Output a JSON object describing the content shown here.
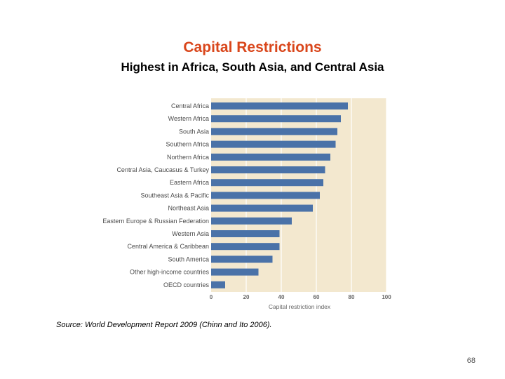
{
  "slide": {
    "title": "Capital Restrictions",
    "subtitle": "Highest in Africa, South Asia, and Central Asia",
    "source": "Source: World Development Report 2009 (Chinn and Ito 2006).",
    "page_number": "68"
  },
  "colors": {
    "bar": "#4a72a8",
    "plot_bg": "#f3e8cf",
    "grid": "#ffffff",
    "title": "#d9461b"
  },
  "chart_data": {
    "type": "bar",
    "orientation": "horizontal",
    "title": "",
    "xlabel": "Capital restriction index",
    "ylabel": "",
    "xlim": [
      0,
      100
    ],
    "xticks": [
      0,
      20,
      40,
      60,
      80,
      100
    ],
    "grid": true,
    "categories": [
      "Central Africa",
      "Western Africa",
      "South Asia",
      "Southern Africa",
      "Northern Africa",
      "Central Asia, Caucasus & Turkey",
      "Eastern Africa",
      "Southeast Asia & Pacific",
      "Northeast Asia",
      "Eastern Europe & Russian Federation",
      "Western Asia",
      "Central America & Caribbean",
      "South America",
      "Other high-income countries",
      "OECD countries"
    ],
    "values": [
      78,
      74,
      72,
      71,
      68,
      65,
      64,
      62,
      58,
      46,
      39,
      39,
      35,
      27,
      8
    ]
  }
}
